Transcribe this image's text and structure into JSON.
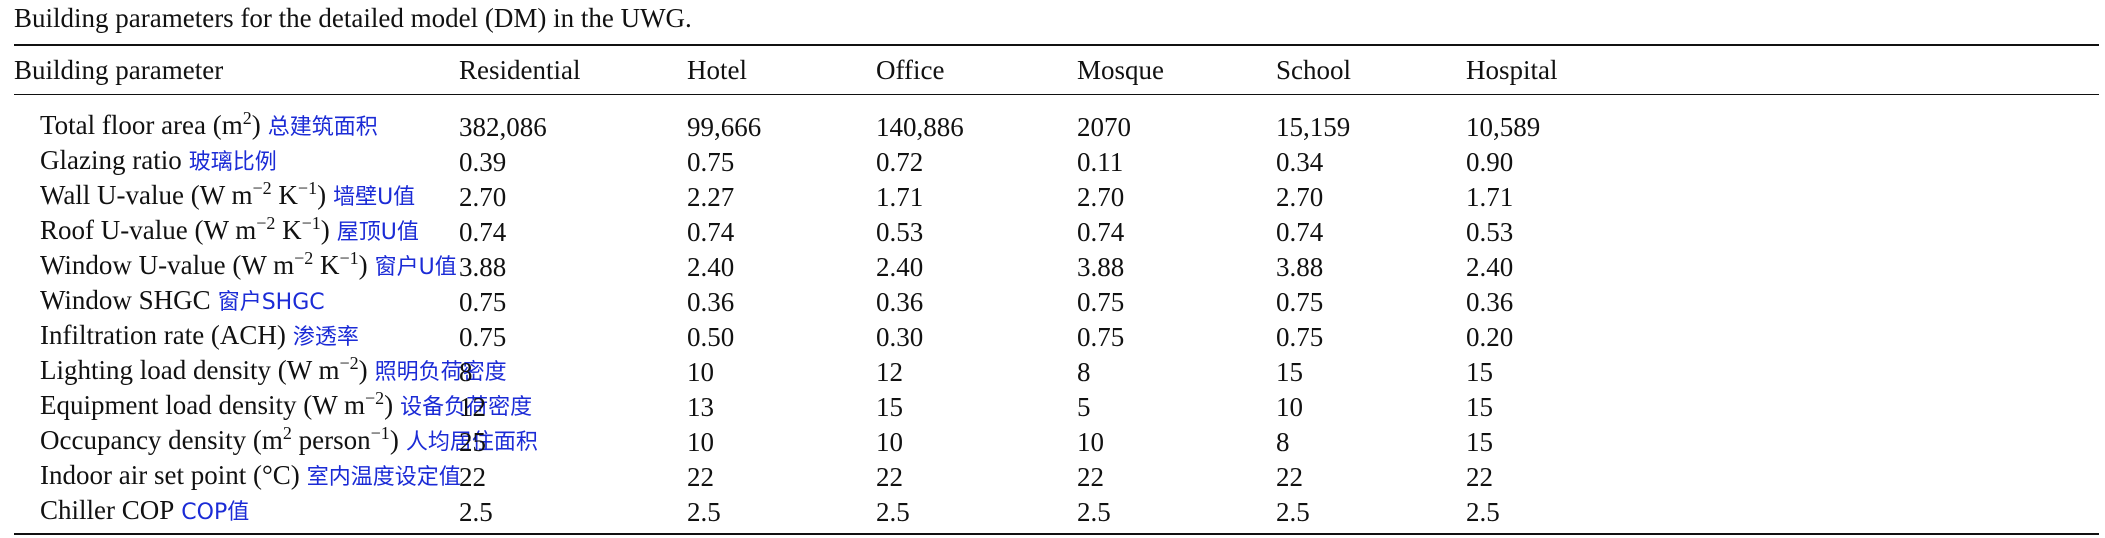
{
  "caption": "Building parameters for the detailed model (DM) in the UWG.",
  "columns": [
    "Building parameter",
    "Residential",
    "Hotel",
    "Office",
    "Mosque",
    "School",
    "Hospital"
  ],
  "rows": [
    {
      "pre": "Total floor area (m",
      "sup": "2",
      "post": ")",
      "zh": "总建筑面积",
      "values": [
        "382,086",
        "99,666",
        "140,886",
        "2070",
        "15,159",
        "10,589"
      ]
    },
    {
      "pre": "Glazing ratio",
      "sup": "",
      "post": "",
      "zh": "玻璃比例",
      "values": [
        "0.39",
        "0.75",
        "0.72",
        "0.11",
        "0.34",
        "0.90"
      ]
    },
    {
      "pre": "Wall U-value (W m",
      "sup": "−2",
      "mid": " K",
      "sup2": "−1",
      "post": ")",
      "zh": "墙壁U值",
      "values": [
        "2.70",
        "2.27",
        "1.71",
        "2.70",
        "2.70",
        "1.71"
      ]
    },
    {
      "pre": "Roof U-value (W m",
      "sup": "−2",
      "mid": " K",
      "sup2": "−1",
      "post": ")",
      "zh": "屋顶U值",
      "values": [
        "0.74",
        "0.74",
        "0.53",
        "0.74",
        "0.74",
        "0.53"
      ]
    },
    {
      "pre": "Window U-value (W m",
      "sup": "−2",
      "mid": " K",
      "sup2": "−1",
      "post": ")",
      "zh": "窗户U值",
      "values": [
        "3.88",
        "2.40",
        "2.40",
        "3.88",
        "3.88",
        "2.40"
      ]
    },
    {
      "pre": "Window SHGC",
      "sup": "",
      "post": "",
      "zh": "窗户SHGC",
      "values": [
        "0.75",
        "0.36",
        "0.36",
        "0.75",
        "0.75",
        "0.36"
      ]
    },
    {
      "pre": "Infiltration rate (ACH)",
      "sup": "",
      "post": "",
      "zh": "渗透率",
      "values": [
        "0.75",
        "0.50",
        "0.30",
        "0.75",
        "0.75",
        "0.20"
      ]
    },
    {
      "pre": "Lighting load density (W m",
      "sup": "−2",
      "post": ")",
      "zh": "照明负荷密度",
      "values": [
        "8",
        "10",
        "12",
        "8",
        "15",
        "15"
      ]
    },
    {
      "pre": "Equipment load density (W m",
      "sup": "−2",
      "post": ")",
      "zh": "设备负荷密度",
      "values": [
        "12",
        "13",
        "15",
        "5",
        "10",
        "15"
      ]
    },
    {
      "pre": "Occupancy density (m",
      "sup": "2",
      "mid": " person",
      "sup2": "−1",
      "post": ")",
      "zh": "人均居住面积",
      "values": [
        "25",
        "10",
        "10",
        "10",
        "8",
        "15"
      ]
    },
    {
      "pre": "Indoor air set point (°C)",
      "sup": "",
      "post": "",
      "zh": "室内温度设定值",
      "values": [
        "22",
        "22",
        "22",
        "22",
        "22",
        "22"
      ]
    },
    {
      "pre": "Chiller COP",
      "sup": "",
      "post": "",
      "zh": "COP值",
      "values": [
        "2.5",
        "2.5",
        "2.5",
        "2.5",
        "2.5",
        "2.5"
      ]
    }
  ]
}
